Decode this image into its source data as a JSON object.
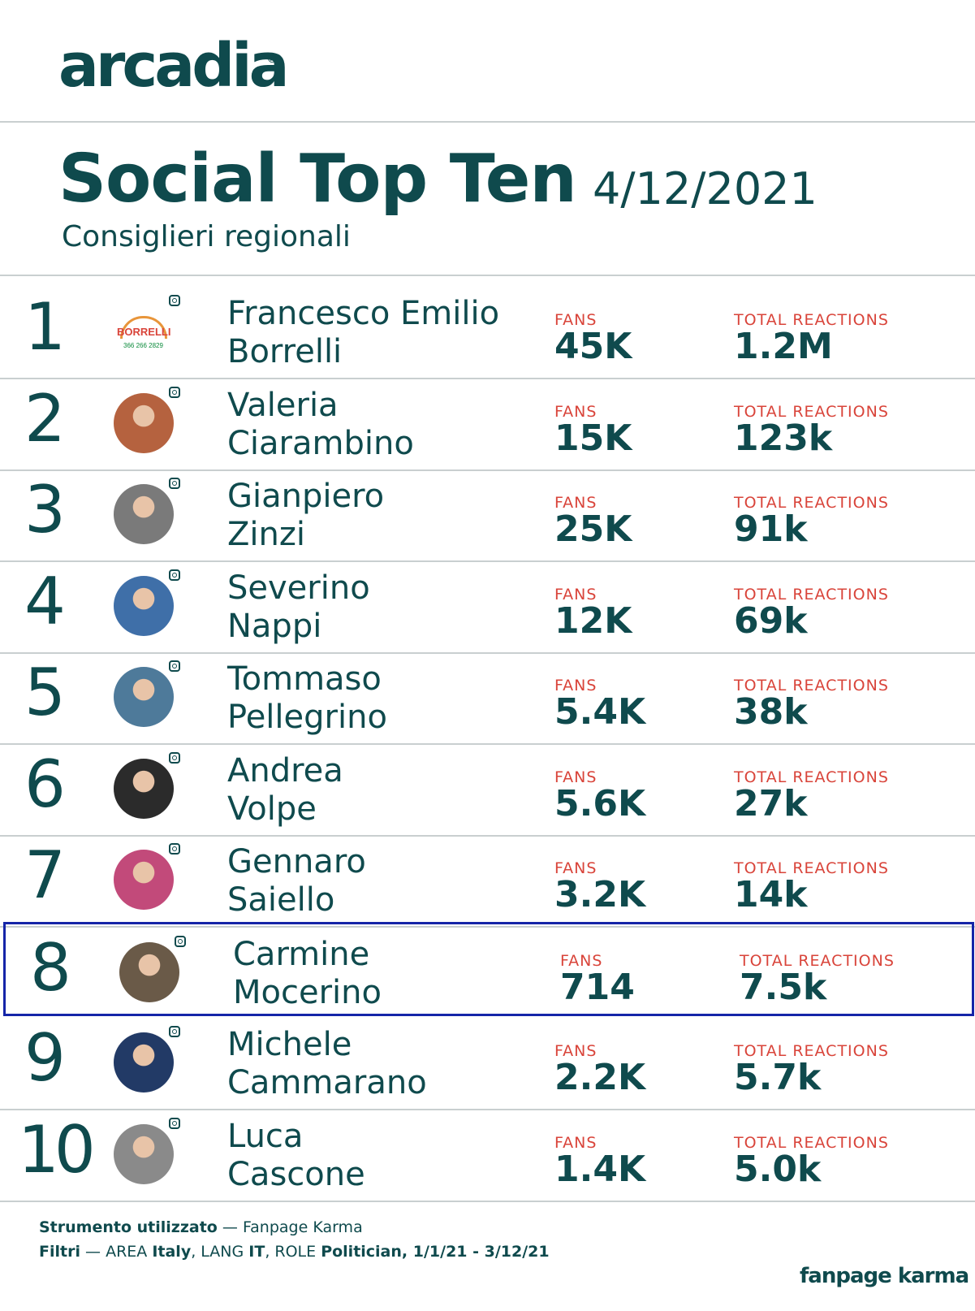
{
  "brand": {
    "name": "arcadia",
    "reg": "®"
  },
  "header": {
    "title": "Social Top Ten",
    "date": "4/12/2021",
    "subtitle": "Consiglieri regionali"
  },
  "labels": {
    "fans": "FANS",
    "reactions": "TOTAL REACTIONS"
  },
  "rows": [
    {
      "rank": "1",
      "first": "Francesco Emilio",
      "last": "Borrelli",
      "fans": "45K",
      "reactions": "1.2M",
      "avatar_bg": "#ffffff"
    },
    {
      "rank": "2",
      "first": "Valeria",
      "last": "Ciarambino",
      "fans": "15K",
      "reactions": "123k",
      "avatar_bg": "#b5623f"
    },
    {
      "rank": "3",
      "first": "Gianpiero",
      "last": "Zinzi",
      "fans": "25K",
      "reactions": "91k",
      "avatar_bg": "#7a7a7a"
    },
    {
      "rank": "4",
      "first": "Severino",
      "last": "Nappi",
      "fans": "12K",
      "reactions": "69k",
      "avatar_bg": "#3f6fa8"
    },
    {
      "rank": "5",
      "first": "Tommaso",
      "last": "Pellegrino",
      "fans": "5.4K",
      "reactions": "38k",
      "avatar_bg": "#4e7a9a"
    },
    {
      "rank": "6",
      "first": "Andrea",
      "last": "Volpe",
      "fans": "5.6K",
      "reactions": "27k",
      "avatar_bg": "#2b2b2b"
    },
    {
      "rank": "7",
      "first": "Gennaro",
      "last": "Saiello",
      "fans": "3.2K",
      "reactions": "14k",
      "avatar_bg": "#c24a7a"
    },
    {
      "rank": "8",
      "first": "Carmine",
      "last": "Mocerino",
      "fans": "714",
      "reactions": "7.5k",
      "avatar_bg": "#6a5a48",
      "highlight": true
    },
    {
      "rank": "9",
      "first": "Michele",
      "last": "Cammarano",
      "fans": "2.2K",
      "reactions": "5.7k",
      "avatar_bg": "#223a66"
    },
    {
      "rank": "10",
      "first": "Luca",
      "last": "Cascone",
      "fans": "1.4K",
      "reactions": "5.0k",
      "avatar_bg": "#8a8a8a"
    }
  ],
  "avatar1": {
    "top": "BORRELLI",
    "phone": "366 266 2829"
  },
  "footer": {
    "tool_label": "Strumento utilizzato",
    "tool_sep": " — ",
    "tool_value": "Fanpage Karma",
    "filters_label": "Filtri",
    "filters_sep": " — ",
    "area_k": "AREA ",
    "area_v": "Italy",
    "lang_k": ", LANG ",
    "lang_v": "IT",
    "role_k": ", ROLE ",
    "role_v": "Politician",
    "range": ", 1/1/21 - 3/12/21",
    "brand": "fanpage karma"
  }
}
